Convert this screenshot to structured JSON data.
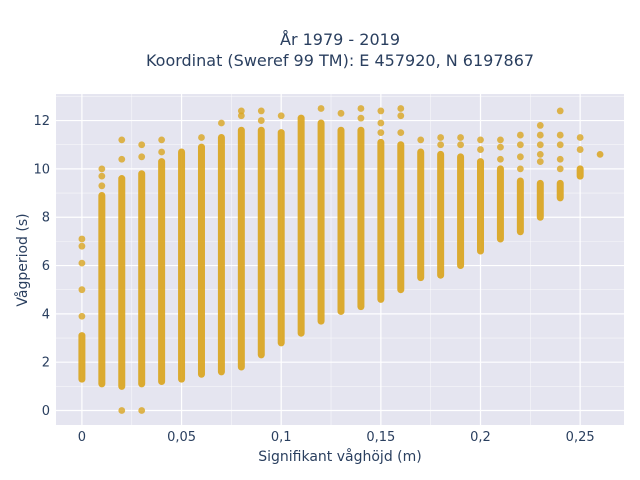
{
  "chart_data": {
    "type": "scatter",
    "title_line1": "År 1979 - 2019",
    "title_line2": "Koordinat (Sweref 99 TM): E 457920, N 6197867",
    "xlabel": "Signifikant våghöjd (m)",
    "ylabel": "Vågperiod (s)",
    "xlim": [
      -0.013,
      0.272
    ],
    "ylim": [
      -0.6,
      13.1
    ],
    "x_ticks": [
      0,
      0.05,
      0.1,
      0.15,
      0.2,
      0.25
    ],
    "x_tick_labels": [
      "0",
      "0,05",
      "0,1",
      "0,15",
      "0,2",
      "0,25"
    ],
    "y_ticks": [
      0,
      2,
      4,
      6,
      8,
      10,
      12
    ],
    "y_tick_labels": [
      "0",
      "2",
      "4",
      "6",
      "8",
      "10",
      "12"
    ],
    "grid": true,
    "colors": {
      "marker": "#DAA520",
      "plot_bg": "#E5E5F0",
      "grid": "#ffffff",
      "text": "#2a3f5f"
    },
    "columns": [
      {
        "x": 0.0,
        "y_min": 1.3,
        "y_max": 3.1,
        "outliers": [
          3.9,
          5.0,
          6.1,
          6.8,
          7.1
        ]
      },
      {
        "x": 0.01,
        "y_min": 1.1,
        "y_max": 8.9,
        "outliers": [
          9.3,
          9.7,
          10.0
        ]
      },
      {
        "x": 0.02,
        "y_min": 1.0,
        "y_max": 9.6,
        "outliers": [
          0.0,
          10.4,
          11.2
        ]
      },
      {
        "x": 0.03,
        "y_min": 1.1,
        "y_max": 9.8,
        "outliers": [
          0.0,
          10.5,
          11.0
        ]
      },
      {
        "x": 0.04,
        "y_min": 1.2,
        "y_max": 10.3,
        "outliers": [
          10.7,
          11.2
        ]
      },
      {
        "x": 0.05,
        "y_min": 1.3,
        "y_max": 10.7,
        "outliers": []
      },
      {
        "x": 0.06,
        "y_min": 1.5,
        "y_max": 10.9,
        "outliers": [
          11.3
        ]
      },
      {
        "x": 0.07,
        "y_min": 1.6,
        "y_max": 11.3,
        "outliers": [
          11.9
        ]
      },
      {
        "x": 0.08,
        "y_min": 1.8,
        "y_max": 11.6,
        "outliers": [
          12.2,
          12.4
        ]
      },
      {
        "x": 0.09,
        "y_min": 2.3,
        "y_max": 11.6,
        "outliers": [
          12.0,
          12.4
        ]
      },
      {
        "x": 0.1,
        "y_min": 2.8,
        "y_max": 11.5,
        "outliers": [
          12.2
        ]
      },
      {
        "x": 0.11,
        "y_min": 3.2,
        "y_max": 12.1,
        "outliers": []
      },
      {
        "x": 0.12,
        "y_min": 3.7,
        "y_max": 11.9,
        "outliers": [
          12.5
        ]
      },
      {
        "x": 0.13,
        "y_min": 4.1,
        "y_max": 11.6,
        "outliers": [
          12.3
        ]
      },
      {
        "x": 0.14,
        "y_min": 4.3,
        "y_max": 11.6,
        "outliers": [
          12.1,
          12.5
        ]
      },
      {
        "x": 0.15,
        "y_min": 4.6,
        "y_max": 11.1,
        "outliers": [
          11.5,
          11.9,
          12.4
        ]
      },
      {
        "x": 0.16,
        "y_min": 5.0,
        "y_max": 11.0,
        "outliers": [
          11.5,
          12.2,
          12.5
        ]
      },
      {
        "x": 0.17,
        "y_min": 5.5,
        "y_max": 10.7,
        "outliers": [
          11.2
        ]
      },
      {
        "x": 0.18,
        "y_min": 5.6,
        "y_max": 10.6,
        "outliers": [
          11.0,
          11.3
        ]
      },
      {
        "x": 0.19,
        "y_min": 6.0,
        "y_max": 10.5,
        "outliers": [
          11.0,
          11.3
        ]
      },
      {
        "x": 0.2,
        "y_min": 6.6,
        "y_max": 10.3,
        "outliers": [
          10.8,
          11.2
        ]
      },
      {
        "x": 0.21,
        "y_min": 7.1,
        "y_max": 10.0,
        "outliers": [
          10.4,
          10.9,
          11.2
        ]
      },
      {
        "x": 0.22,
        "y_min": 7.4,
        "y_max": 9.5,
        "outliers": [
          10.0,
          10.5,
          11.0,
          11.4
        ]
      },
      {
        "x": 0.23,
        "y_min": 8.0,
        "y_max": 9.4,
        "outliers": [
          10.3,
          10.6,
          11.0,
          11.4,
          11.8
        ]
      },
      {
        "x": 0.24,
        "y_min": 8.8,
        "y_max": 9.4,
        "outliers": [
          10.0,
          10.4,
          11.0,
          11.4,
          12.4
        ]
      },
      {
        "x": 0.25,
        "y_min": 9.7,
        "y_max": 10.0,
        "outliers": [
          10.8,
          11.3
        ]
      },
      {
        "x": 0.26,
        "y_min": 10.6,
        "y_max": 10.6,
        "outliers": []
      }
    ]
  }
}
